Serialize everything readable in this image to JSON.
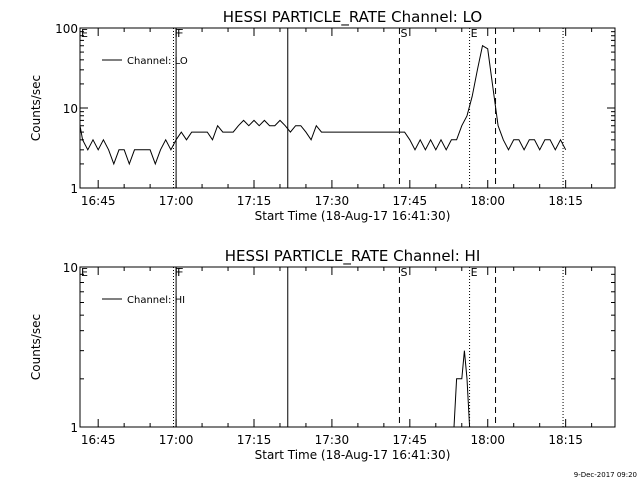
{
  "chart_data": [
    {
      "type": "line",
      "title": "HESSI PARTICLE_RATE Channel: LO",
      "xlabel": "Start Time (18-Aug-17 16:41:30)",
      "ylabel": "Counts/sec",
      "yscale": "log",
      "ylim": [
        1,
        100
      ],
      "yticks": [
        {
          "value": 1,
          "label": "1"
        },
        {
          "value": 10,
          "label": "10"
        },
        {
          "value": 100,
          "label": "100"
        }
      ],
      "xlim": [
        "16:41:30",
        "18:24:30"
      ],
      "xticks": [
        "16:45",
        "17:00",
        "17:15",
        "17:30",
        "17:45",
        "18:00",
        "18:15"
      ],
      "legend": {
        "label": "Channel: LO",
        "position": "top-left"
      },
      "series": [
        {
          "name": "Channel: LO",
          "x": [
            "16:41:30",
            "16:42:00",
            "16:43:00",
            "16:44:00",
            "16:45:00",
            "16:46:00",
            "16:47:00",
            "16:48:00",
            "16:49:00",
            "16:50:00",
            "16:51:00",
            "16:52:00",
            "16:53:00",
            "16:54:00",
            "16:55:00",
            "16:56:00",
            "16:57:00",
            "16:58:00",
            "16:59:00",
            "17:00:00",
            "17:01:00",
            "17:02:00",
            "17:03:00",
            "17:04:00",
            "17:05:00",
            "17:06:00",
            "17:07:00",
            "17:08:00",
            "17:09:00",
            "17:10:00",
            "17:11:00",
            "17:12:00",
            "17:13:00",
            "17:14:00",
            "17:15:00",
            "17:16:00",
            "17:17:00",
            "17:18:00",
            "17:19:00",
            "17:20:00",
            "17:21:00",
            "17:22:00",
            "17:23:00",
            "17:24:00",
            "17:25:00",
            "17:26:00",
            "17:27:00",
            "17:28:00",
            "17:29:00",
            "17:30:00",
            "17:31:00",
            "17:32:00",
            "17:33:00",
            "17:34:00",
            "17:35:00",
            "17:36:00",
            "17:37:00",
            "17:38:00",
            "17:39:00",
            "17:40:00",
            "17:41:00",
            "17:42:00",
            "17:43:00",
            "17:44:00",
            "17:45:00",
            "17:46:00",
            "17:47:00",
            "17:48:00",
            "17:49:00",
            "17:50:00",
            "17:51:00",
            "17:52:00",
            "17:53:00",
            "17:54:00",
            "17:55:00",
            "17:56:00",
            "17:57:00",
            "17:58:00",
            "17:59:00",
            "18:00:00",
            "18:01:00",
            "18:02:00",
            "18:03:00",
            "18:04:00",
            "18:05:00",
            "18:06:00",
            "18:07:00",
            "18:08:00",
            "18:09:00",
            "18:10:00",
            "18:11:00",
            "18:12:00",
            "18:13:00",
            "18:14:00",
            "18:15:00"
          ],
          "y": [
            6,
            4,
            3,
            4,
            3,
            4,
            3,
            2,
            3,
            3,
            2,
            3,
            3,
            3,
            3,
            2,
            3,
            4,
            3,
            4,
            5,
            4,
            5,
            5,
            5,
            5,
            4,
            6,
            5,
            5,
            5,
            6,
            7,
            6,
            7,
            6,
            7,
            6,
            6,
            7,
            6,
            5,
            6,
            6,
            5,
            4,
            6,
            5,
            5,
            5,
            5,
            5,
            5,
            5,
            5,
            5,
            5,
            5,
            5,
            5,
            5,
            5,
            5,
            5,
            4,
            3,
            4,
            3,
            4,
            3,
            4,
            3,
            4,
            4,
            6,
            8,
            14,
            30,
            60,
            55,
            18,
            6,
            4,
            3,
            4,
            4,
            3,
            4,
            4,
            3,
            4,
            4,
            3,
            4,
            3
          ]
        }
      ],
      "markers": [
        {
          "label": "E",
          "time": "16:41:30",
          "style": "dotted"
        },
        {
          "label": "F",
          "time": "16:59:30",
          "style": "dotted"
        },
        {
          "label": "F",
          "time": "17:00:00",
          "style": "solid"
        },
        {
          "label": "",
          "time": "17:21:30",
          "style": "solid"
        },
        {
          "label": "S",
          "time": "17:43:00",
          "style": "dashed"
        },
        {
          "label": "E",
          "time": "17:56:30",
          "style": "dotted"
        },
        {
          "label": "",
          "time": "18:01:30",
          "style": "dashed"
        },
        {
          "label": "",
          "time": "18:14:30",
          "style": "dotted"
        }
      ]
    },
    {
      "type": "line",
      "title": "HESSI PARTICLE_RATE Channel: HI",
      "xlabel": "Start Time (18-Aug-17 16:41:30)",
      "ylabel": "Counts/sec",
      "yscale": "log",
      "ylim": [
        1,
        10
      ],
      "yticks": [
        {
          "value": 1,
          "label": "1"
        },
        {
          "value": 10,
          "label": "10"
        }
      ],
      "xlim": [
        "16:41:30",
        "18:24:30"
      ],
      "xticks": [
        "16:45",
        "17:00",
        "17:15",
        "17:30",
        "17:45",
        "18:00",
        "18:15"
      ],
      "legend": {
        "label": "Channel: HI",
        "position": "top-left"
      },
      "series": [
        {
          "name": "Channel: HI",
          "x": [
            "17:53:30",
            "17:54:00",
            "17:55:00",
            "17:55:30",
            "17:56:00",
            "17:56:30",
            "17:57:00"
          ],
          "y": [
            1,
            2,
            2,
            3,
            2,
            1,
            1
          ]
        }
      ],
      "markers": [
        {
          "label": "E",
          "time": "16:41:30",
          "style": "dotted"
        },
        {
          "label": "F",
          "time": "16:59:30",
          "style": "dotted"
        },
        {
          "label": "F",
          "time": "17:00:00",
          "style": "solid"
        },
        {
          "label": "",
          "time": "17:21:30",
          "style": "solid"
        },
        {
          "label": "S",
          "time": "17:43:00",
          "style": "dashed"
        },
        {
          "label": "E",
          "time": "17:56:30",
          "style": "dotted"
        },
        {
          "label": "",
          "time": "18:01:30",
          "style": "dashed"
        },
        {
          "label": "",
          "time": "18:14:30",
          "style": "dotted"
        }
      ]
    }
  ],
  "footer": {
    "timestamp": "9-Dec-2017 09:20"
  }
}
